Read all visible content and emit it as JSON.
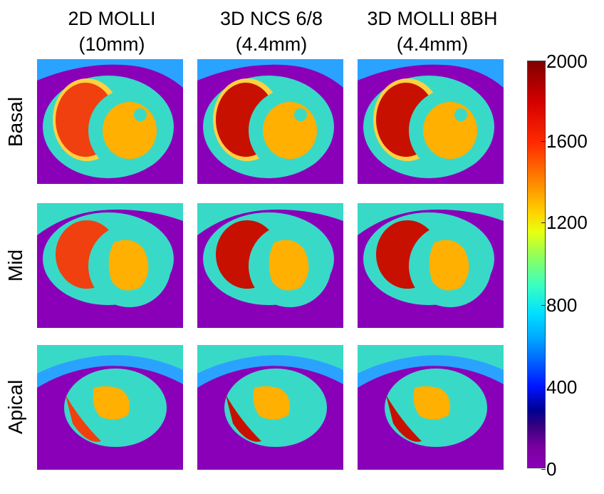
{
  "columns": [
    {
      "line1": "2D MOLLI",
      "line2": "(10mm)"
    },
    {
      "line1": "3D NCS 6/8",
      "line2": "(4.4mm)"
    },
    {
      "line1": "3D MOLLI 8BH",
      "line2": "(4.4mm)"
    }
  ],
  "rows": [
    "Basal",
    "Mid",
    "Apical"
  ],
  "colorbar": {
    "ticks": [
      "2000",
      "1600",
      "1200",
      "800",
      "400",
      "0"
    ]
  },
  "colors": {
    "background": "#8a00b8",
    "muscle": "#39d9c8",
    "blood_pool": "#ffb000",
    "rv": "#f04010",
    "edge": "#2aa3ff"
  }
}
